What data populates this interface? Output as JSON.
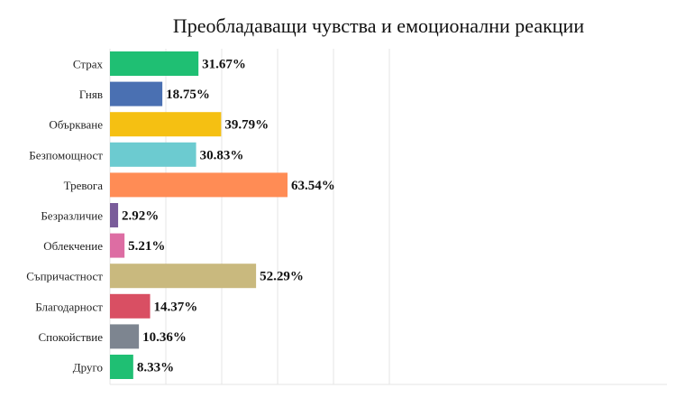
{
  "chart_data": {
    "type": "bar",
    "orientation": "horizontal",
    "title": "Преобладаващи чувства и емоционални реакции",
    "xlabel": "",
    "ylabel": "",
    "xlim": [
      0,
      100
    ],
    "grid": true,
    "categories": [
      "Страх",
      "Гняв",
      "Объркване",
      "Безпомощност",
      "Тревога",
      "Безразличие",
      "Облекчение",
      "Съпричастност",
      "Благодарност",
      "Спокойствие",
      "Друго"
    ],
    "values": [
      31.67,
      18.75,
      39.79,
      30.83,
      63.54,
      2.92,
      5.21,
      52.29,
      14.37,
      10.36,
      8.33
    ],
    "data_labels": [
      "31.67%",
      "18.75%",
      "39.79%",
      "30.83%",
      "63.54%",
      "2.92%",
      "5.21%",
      "52.29%",
      "14.37%",
      "10.36%",
      "8.33%"
    ],
    "colors": [
      "#1fbf73",
      "#4a70b2",
      "#f5c012",
      "#6ccbd0",
      "#ff8c55",
      "#7a5c9a",
      "#dd6da3",
      "#c9b97e",
      "#d94f63",
      "#7d8590",
      "#1fbf73"
    ]
  }
}
